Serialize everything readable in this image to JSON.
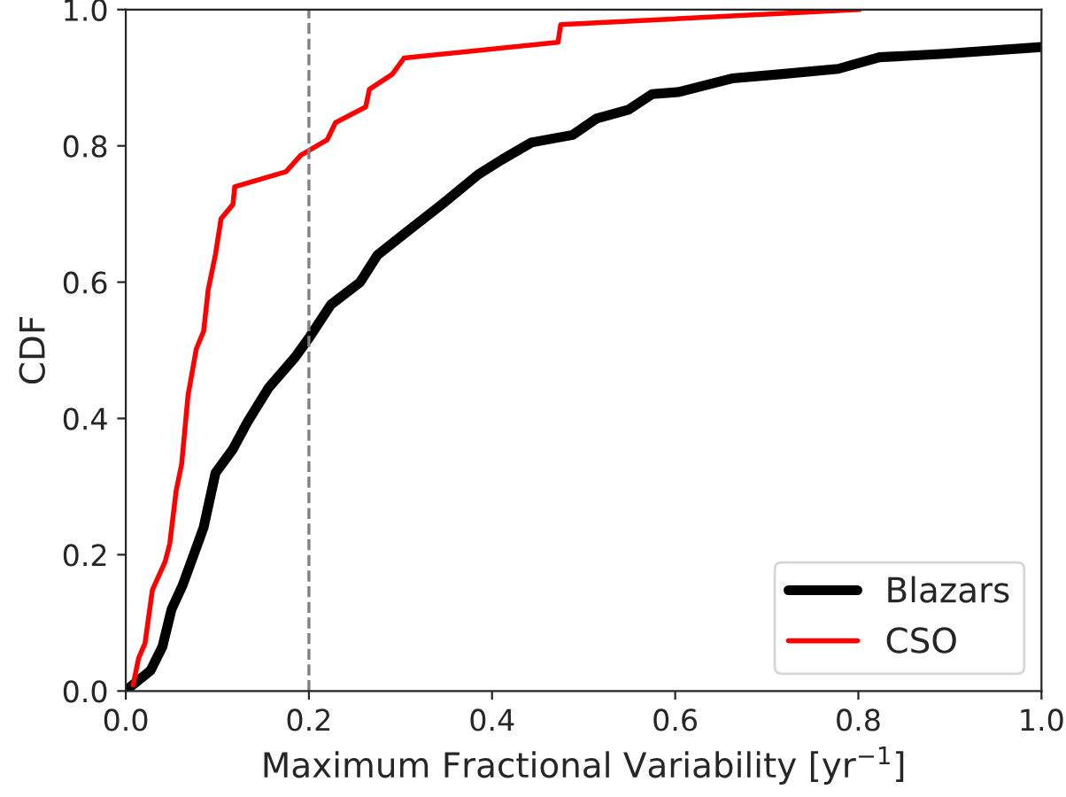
{
  "chart_data": {
    "type": "line",
    "xlabel": "Maximum Fractional Variability [yr$^{−1}$]",
    "ylabel": "CDF",
    "xlim": [
      0,
      1
    ],
    "ylim": [
      0,
      1
    ],
    "xticks": [
      {
        "value": 0,
        "label": "0.0"
      },
      0.2,
      0.4,
      0.6,
      0.8,
      {
        "value": 1,
        "label": "1.0"
      }
    ],
    "yticks": [
      {
        "value": 0,
        "label": "0.0"
      },
      0.2,
      0.4,
      0.6,
      0.8,
      {
        "value": 1,
        "label": "1.0"
      }
    ],
    "series": [
      {
        "name": "Blazars",
        "color": "#000000",
        "x": [
          0.003,
          0.027,
          0.04,
          0.05,
          0.062,
          0.085,
          0.098,
          0.117,
          0.133,
          0.156,
          0.185,
          0.201,
          0.224,
          0.256,
          0.275,
          0.308,
          0.346,
          0.385,
          0.411,
          0.443,
          0.488,
          0.514,
          0.549,
          0.575,
          0.604,
          0.662,
          0.714,
          0.778,
          0.823,
          0.894,
          1.0
        ],
        "values": [
          0.004,
          0.03,
          0.065,
          0.12,
          0.155,
          0.24,
          0.32,
          0.355,
          0.395,
          0.445,
          0.49,
          0.52,
          0.567,
          0.6,
          0.64,
          0.675,
          0.715,
          0.758,
          0.78,
          0.805,
          0.816,
          0.84,
          0.853,
          0.876,
          0.879,
          0.899,
          0.905,
          0.913,
          0.93,
          0.935,
          0.945
        ]
      },
      {
        "name": "CSO",
        "color": "#ff0000",
        "x": [
          0.008,
          0.014,
          0.021,
          0.029,
          0.043,
          0.048,
          0.055,
          0.061,
          0.068,
          0.077,
          0.085,
          0.09,
          0.098,
          0.104,
          0.117,
          0.119,
          0.175,
          0.191,
          0.22,
          0.229,
          0.262,
          0.266,
          0.291,
          0.304,
          0.472,
          0.475,
          0.801
        ],
        "values": [
          0.009,
          0.048,
          0.07,
          0.148,
          0.19,
          0.216,
          0.294,
          0.333,
          0.434,
          0.502,
          0.528,
          0.589,
          0.641,
          0.693,
          0.714,
          0.74,
          0.762,
          0.786,
          0.809,
          0.834,
          0.857,
          0.883,
          0.905,
          0.929,
          0.952,
          0.978,
          1.0
        ]
      }
    ],
    "ref_lines": [
      {
        "axis": "x",
        "value": 0.2,
        "color": "#808080",
        "line_style": "dashed"
      }
    ],
    "legend": "bottom right",
    "grid": false
  }
}
